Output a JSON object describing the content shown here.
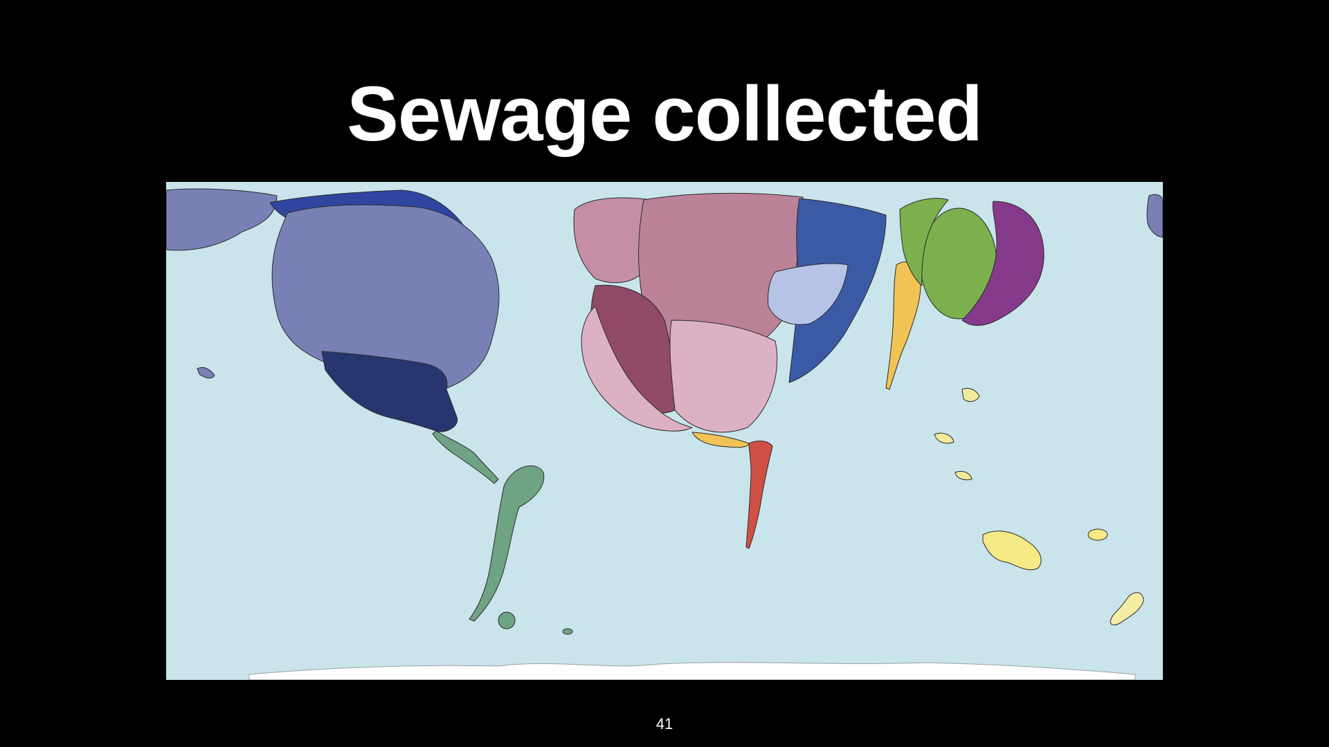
{
  "slide": {
    "title": "Sewage collected",
    "page_number": "41"
  },
  "map": {
    "type": "cartogram",
    "ocean_color": "#c9e4ea",
    "ice_color": "#ffffff",
    "outline_color": "#2a2a2a",
    "region_colors": {
      "north-america": "#7880b5",
      "mexico-central": "#26376f",
      "canada-arctic": "#2f45a0",
      "south-america": "#6ea383",
      "western-europe": "#c48ea4",
      "eastern-europe": "#bc8297",
      "russia-west": "#3a5aa6",
      "russia-light": "#b6c3e6",
      "middle-east": "#904a67",
      "north-africa-pink": "#ddb1c4",
      "africa": "#d05046",
      "south-asia": "#f1c355",
      "china": "#7bb04d",
      "japan-korea": "#863a8b",
      "southeast-asia": "#f2ea9c",
      "australia": "#f5ea85",
      "new-zealand": "#f5eda3"
    }
  }
}
